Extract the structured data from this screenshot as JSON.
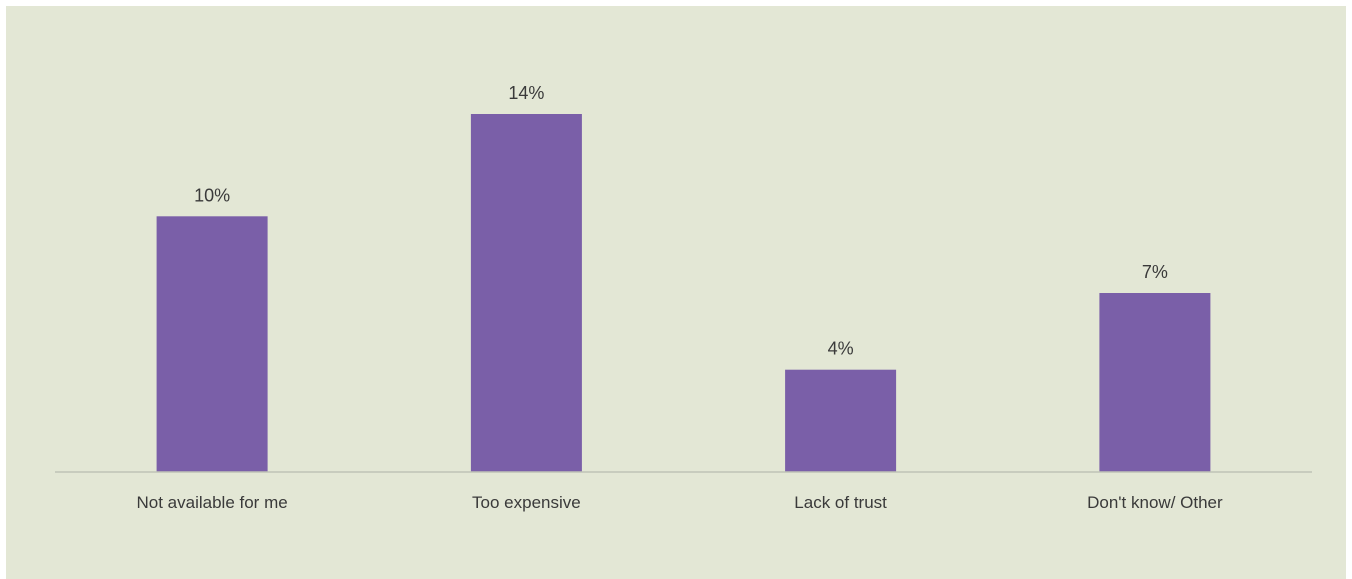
{
  "chart_data": {
    "type": "bar",
    "categories": [
      "Not available for me",
      "Too expensive",
      "Lack of trust",
      "Don't know/ Other"
    ],
    "values": [
      10,
      14,
      4,
      7
    ],
    "value_labels": [
      "10%",
      "14%",
      "4%",
      "7%"
    ],
    "unit": "%",
    "ylim": [
      0,
      14
    ],
    "grid": false,
    "legend": "none",
    "colors": {
      "bar": "#7a5fa8",
      "axis": "#bfc3b6",
      "background": "#e3e7d5",
      "text": "#3a3a3a"
    }
  }
}
